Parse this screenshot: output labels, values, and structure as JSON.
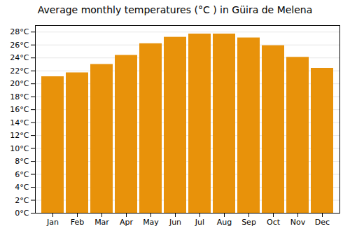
{
  "chart_data": {
    "type": "bar",
    "title": "Average monthly temperatures (°C ) in Güira de Melena",
    "categories": [
      "Jan",
      "Feb",
      "Mar",
      "Apr",
      "May",
      "Jun",
      "Jul",
      "Aug",
      "Sep",
      "Oct",
      "Nov",
      "Dec"
    ],
    "values": [
      21.1,
      21.7,
      23.0,
      24.4,
      26.2,
      27.2,
      27.7,
      27.7,
      27.1,
      25.9,
      24.1,
      22.4
    ],
    "color": "#E8920A",
    "ylim": [
      0,
      29
    ],
    "yticks": [
      {
        "value": 0,
        "label": "0°C"
      },
      {
        "value": 2,
        "label": "2°C"
      },
      {
        "value": 4,
        "label": "4°C"
      },
      {
        "value": 6,
        "label": "6°C"
      },
      {
        "value": 8,
        "label": "8°C"
      },
      {
        "value": 10,
        "label": "10°C"
      },
      {
        "value": 12,
        "label": "12°C"
      },
      {
        "value": 14,
        "label": "14°C"
      },
      {
        "value": 16,
        "label": "16°C"
      },
      {
        "value": 18,
        "label": "18°C"
      },
      {
        "value": 20,
        "label": "20°C"
      },
      {
        "value": 22,
        "label": "22°C"
      },
      {
        "value": 24,
        "label": "24°C"
      },
      {
        "value": 26,
        "label": "26°C"
      },
      {
        "value": 28,
        "label": "28°C"
      }
    ],
    "grid": true
  }
}
